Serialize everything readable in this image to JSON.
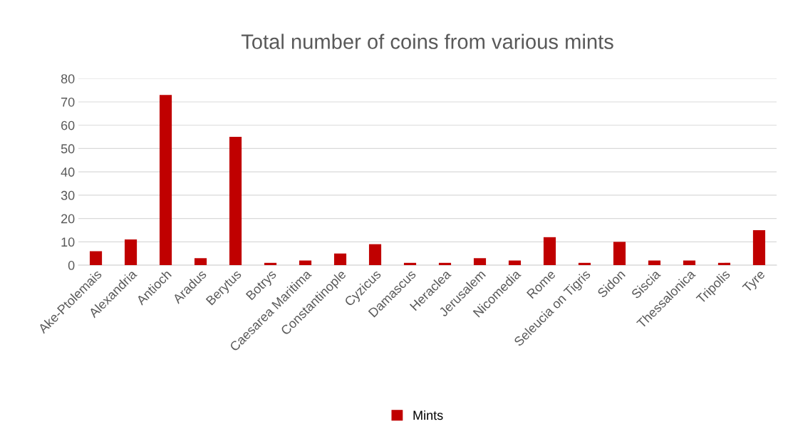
{
  "chart_data": {
    "type": "bar",
    "title": "Total number of coins from various mints",
    "categories": [
      "Ake-Ptolemais",
      "Alexandria",
      "Antioch",
      "Aradus",
      "Berytus",
      "Botrys",
      "Caesarea Maritima",
      "Constantinople",
      "Cyzicus",
      "Damascus",
      "Heraclea",
      "Jerusalem",
      "Nicomedia",
      "Rome",
      "Seleucia on Tigris",
      "Sidon",
      "Siscia",
      "Thessalonica",
      "Tripolis",
      "Tyre"
    ],
    "series": [
      {
        "name": "Mints",
        "color": "#c00000",
        "values": [
          6,
          11,
          73,
          3,
          55,
          1,
          2,
          5,
          9,
          1,
          1,
          3,
          2,
          12,
          1,
          10,
          2,
          2,
          1,
          15
        ]
      }
    ],
    "ylim": [
      0,
      80
    ],
    "yticks": [
      0,
      10,
      20,
      30,
      40,
      50,
      60,
      70,
      80
    ],
    "grid": "y",
    "legend": "bottom"
  }
}
